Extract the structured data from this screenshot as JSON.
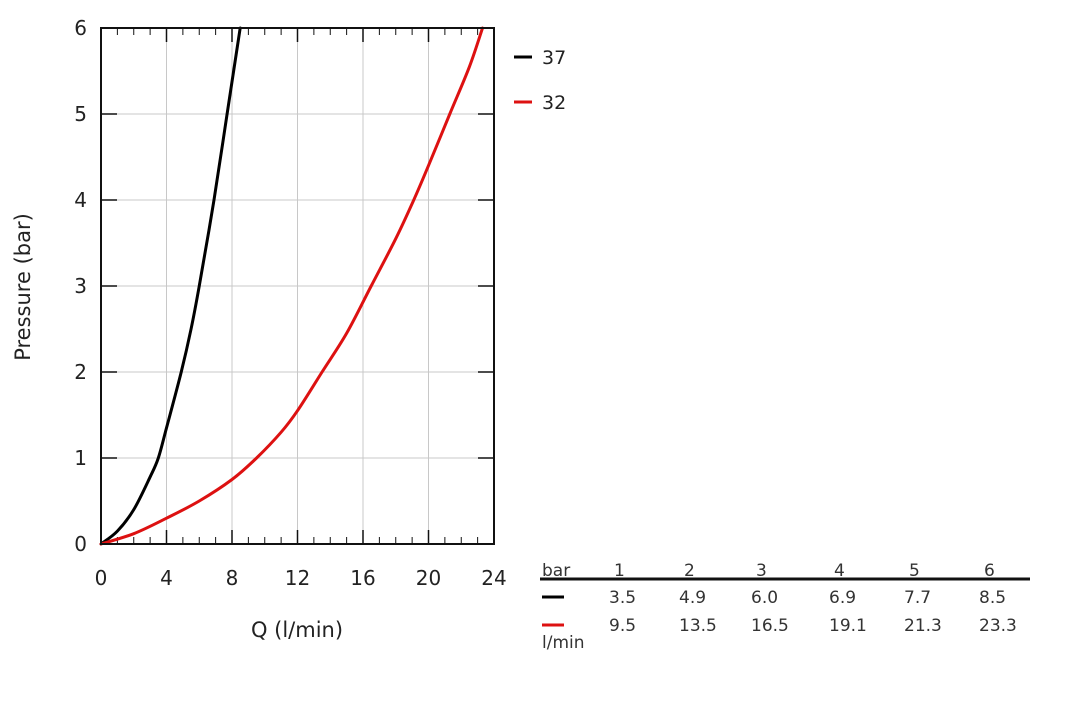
{
  "chart_data": {
    "type": "line",
    "xlabel": "Q (l/min)",
    "ylabel": "Pressure (bar)",
    "xlim": [
      0,
      24
    ],
    "ylim": [
      0,
      6
    ],
    "xticks": [
      "0",
      "4",
      "8",
      "12",
      "16",
      "20",
      "24"
    ],
    "yticks": [
      "0",
      "1",
      "2",
      "3",
      "4",
      "5",
      "6"
    ],
    "grid": true,
    "legend_position": "top-right outside",
    "series": [
      {
        "name": "37",
        "color": "#000000",
        "x": [
          0,
          1,
          2,
          3,
          3.5,
          4,
          4.9,
          5.5,
          6.0,
          6.9,
          7.7,
          8.5
        ],
        "y": [
          0,
          0.15,
          0.4,
          0.78,
          1,
          1.35,
          2,
          2.5,
          3,
          4,
          5,
          6
        ]
      },
      {
        "name": "32",
        "color": "#dd1111",
        "x": [
          0,
          2,
          4,
          6,
          8,
          9.5,
          11,
          12,
          13.5,
          15,
          16.5,
          18,
          19.1,
          20,
          21.3,
          22.5,
          23.3
        ],
        "y": [
          0,
          0.12,
          0.3,
          0.5,
          0.75,
          1,
          1.3,
          1.55,
          2,
          2.45,
          3,
          3.55,
          4,
          4.4,
          5,
          5.55,
          6
        ]
      }
    ],
    "table": {
      "header_label": "bar",
      "unit_label": "l/min",
      "columns": [
        "1",
        "2",
        "3",
        "4",
        "5",
        "6"
      ],
      "rows": [
        {
          "color": "#000000",
          "values": [
            "3.5",
            "4.9",
            "6.0",
            "6.9",
            "7.7",
            "8.5"
          ]
        },
        {
          "color": "#dd1111",
          "values": [
            "9.5",
            "13.5",
            "16.5",
            "19.1",
            "21.3",
            "23.3"
          ]
        }
      ]
    }
  }
}
